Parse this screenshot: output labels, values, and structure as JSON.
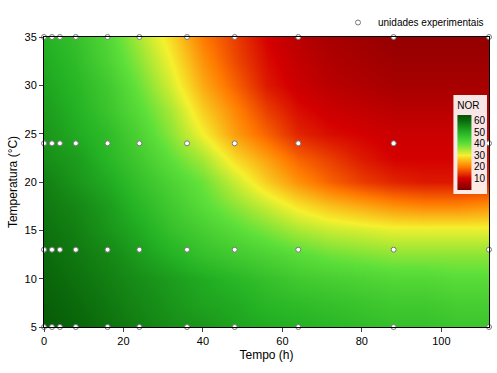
{
  "chart_data": {
    "type": "contour",
    "x_label": "Tempo (h)",
    "y_label": "Temperatura (°C)",
    "xlim": [
      0,
      112
    ],
    "xticks": [
      0,
      20,
      40,
      60,
      80,
      100
    ],
    "ylim": [
      5,
      35
    ],
    "yticks": [
      5,
      10,
      15,
      20,
      25,
      30,
      35
    ],
    "x": [
      0,
      8,
      16,
      24,
      32,
      40,
      48,
      56,
      64,
      72,
      80,
      88,
      96,
      104,
      112
    ],
    "y": [
      5,
      7.5,
      10,
      12.5,
      15,
      17.5,
      20,
      22.5,
      25,
      27.5,
      30,
      32.5,
      35
    ],
    "z": [
      [
        63,
        61,
        59,
        57,
        55,
        54,
        52,
        51,
        50,
        49,
        48,
        47,
        47,
        46,
        46
      ],
      [
        62,
        60,
        58,
        56,
        54,
        52,
        51,
        49,
        48,
        47,
        46,
        45,
        45,
        44,
        44
      ],
      [
        61,
        59,
        57,
        55,
        53,
        51,
        49,
        47,
        45,
        44,
        43,
        42,
        42,
        41,
        41
      ],
      [
        60,
        58,
        56,
        53,
        50,
        47,
        45,
        43,
        41,
        39,
        38,
        37,
        37,
        37,
        37
      ],
      [
        59,
        57,
        54,
        51,
        47,
        44,
        41,
        38,
        35,
        33,
        32,
        31,
        31,
        31,
        31
      ],
      [
        58,
        56,
        53,
        49,
        45,
        41,
        37,
        33,
        29,
        26,
        24,
        22,
        21,
        21,
        22
      ],
      [
        57,
        54,
        51,
        47,
        43,
        39,
        33,
        27,
        22,
        18,
        15,
        13,
        12,
        12,
        13
      ],
      [
        55,
        53,
        49,
        45,
        40,
        35,
        28,
        23,
        18,
        15,
        12,
        10,
        10,
        10,
        11
      ],
      [
        54,
        51,
        48,
        43,
        37,
        30,
        23,
        18,
        13,
        11,
        10,
        9,
        9,
        9,
        10
      ],
      [
        53,
        50,
        46,
        41,
        35,
        27,
        21,
        15,
        11,
        9,
        8,
        7,
        7,
        7,
        7
      ],
      [
        52,
        49,
        45,
        39,
        32,
        24,
        18,
        12,
        9,
        7,
        6,
        5,
        5,
        5,
        5
      ],
      [
        51,
        48,
        43,
        37,
        30,
        22,
        16,
        11,
        8,
        6,
        5,
        4,
        4,
        4,
        4
      ],
      [
        50,
        47,
        42,
        35,
        28,
        20,
        15,
        10,
        7,
        5,
        4,
        3,
        3,
        3,
        3
      ]
    ],
    "colorbar": {
      "title": "NOR",
      "range": [
        0,
        65
      ],
      "ticks": [
        10,
        20,
        30,
        40,
        50,
        60
      ]
    },
    "series": [
      {
        "name": "unidades experimentais",
        "type": "scatter",
        "marker": "circle",
        "color": "#ffffff",
        "x": [
          0,
          2,
          4,
          8,
          16,
          24,
          36,
          48,
          64,
          88,
          112,
          0,
          2,
          4,
          8,
          16,
          24,
          36,
          48,
          64,
          88,
          112,
          0,
          2,
          4,
          8,
          16,
          24,
          36,
          48,
          64,
          88,
          112,
          0,
          2,
          4,
          8,
          16,
          24,
          36,
          48,
          64,
          88,
          112
        ],
        "y": [
          5,
          5,
          5,
          5,
          5,
          5,
          5,
          5,
          5,
          5,
          5,
          13,
          13,
          13,
          13,
          13,
          13,
          13,
          13,
          13,
          13,
          13,
          24,
          24,
          24,
          24,
          24,
          24,
          24,
          24,
          24,
          24,
          24,
          35,
          35,
          35,
          35,
          35,
          35,
          35,
          35,
          35,
          35,
          35
        ]
      }
    ],
    "legend": "top right",
    "grid": false
  }
}
